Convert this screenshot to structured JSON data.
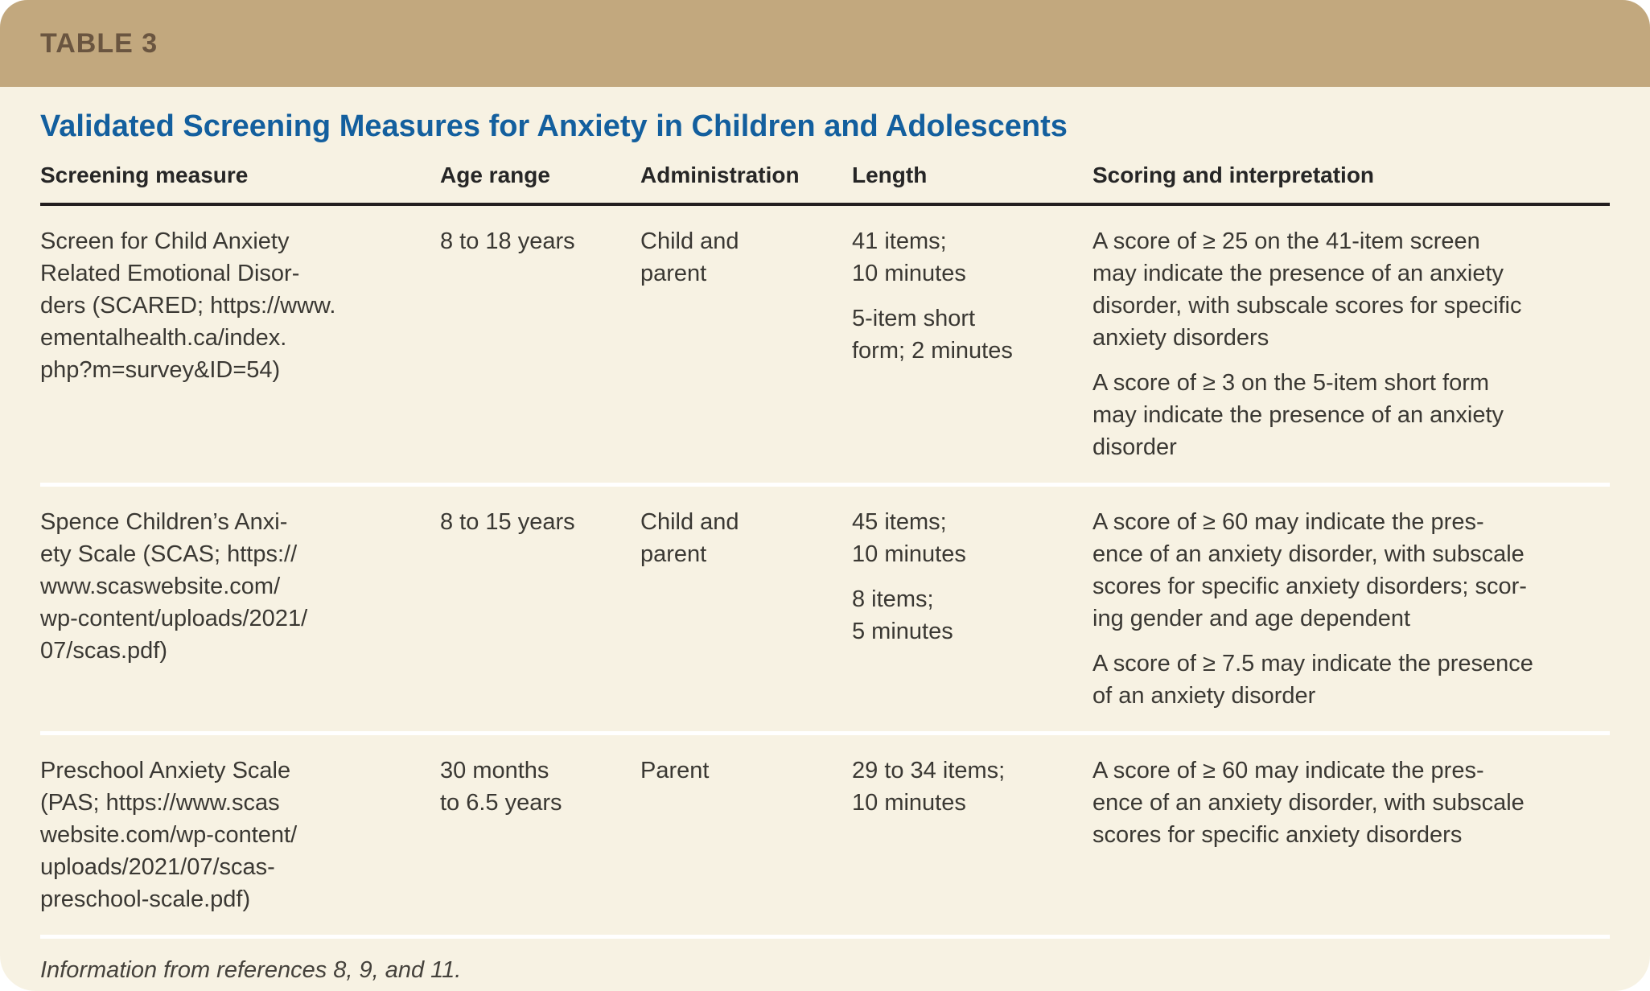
{
  "colors": {
    "band_background": "#c2a87e",
    "band_text": "#6a5540",
    "card_background": "#f7f2e3",
    "title_blue": "#135f9e",
    "header_rule": "#231f20",
    "body_text": "#3a3833",
    "row_separator": "#ffffff"
  },
  "table": {
    "tag": "TABLE 3",
    "title": "Validated Screening Measures for Anxiety in Children and Adolescents",
    "columns": {
      "measure": "Screening measure",
      "age": "Age range",
      "administration": "Administration",
      "length": "Length",
      "scoring": "Scoring and interpretation"
    },
    "rows": [
      {
        "measure_lines": [
          "Screen for Child Anxiety",
          "Related Emotional Disor-",
          "ders (SCARED; https://www.",
          "ementalhealth.ca/index.",
          "php?m=survey&ID=54)"
        ],
        "age_lines": [
          "8 to 18 years"
        ],
        "administration_lines": [
          "Child and",
          "parent"
        ],
        "length_paras": [
          [
            "41 items;",
            "10 minutes"
          ],
          [
            "5-item short",
            "form; 2 minutes"
          ]
        ],
        "scoring_paras": [
          [
            "A score of ≥ 25 on the 41-item screen",
            "may indicate the presence of an anxiety",
            "disorder, with subscale scores for specific",
            "anxiety disorders"
          ],
          [
            "A score of ≥ 3 on the 5-item short form",
            "may indicate the presence of an anxiety",
            "disorder"
          ]
        ]
      },
      {
        "measure_lines": [
          "Spence Children’s Anxi-",
          "ety Scale (SCAS; https://",
          "www.scaswebsite.com/",
          "wp-content/uploads/2021/",
          "07/scas.pdf)"
        ],
        "age_lines": [
          "8 to 15 years"
        ],
        "administration_lines": [
          "Child and",
          "parent"
        ],
        "length_paras": [
          [
            "45 items;",
            "10 minutes"
          ],
          [
            "8 items;",
            "5 minutes"
          ]
        ],
        "scoring_paras": [
          [
            "A score of ≥ 60 may indicate the pres-",
            "ence of an anxiety disorder, with subscale",
            "scores for specific anxiety disorders; scor-",
            "ing gender and age dependent"
          ],
          [
            "A score of ≥ 7.5 may indicate the presence",
            "of an anxiety disorder"
          ]
        ]
      },
      {
        "measure_lines": [
          "Preschool Anxiety Scale",
          "(PAS; https://www.scas",
          "website.com/wp-content/",
          "uploads/2021/07/scas-",
          "preschool-scale.pdf)"
        ],
        "age_lines": [
          "30 months",
          "to 6.5 years"
        ],
        "administration_lines": [
          "Parent"
        ],
        "length_paras": [
          [
            "29 to 34 items;",
            "10 minutes"
          ]
        ],
        "scoring_paras": [
          [
            "A score of ≥ 60 may indicate the pres-",
            "ence of an anxiety disorder, with subscale",
            "scores for specific anxiety disorders"
          ]
        ]
      }
    ],
    "footnote": "Information from references 8, 9, and 11."
  }
}
